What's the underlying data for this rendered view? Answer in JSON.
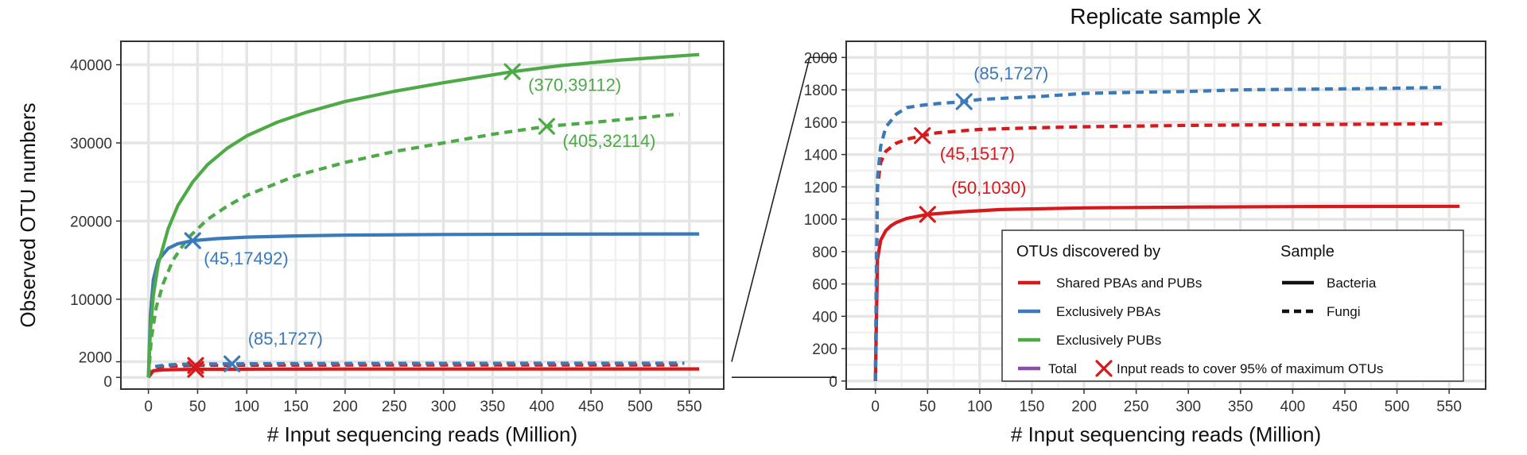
{
  "colors": {
    "shared": "#d7191c",
    "pbas": "#3a7ab8",
    "pubs": "#4daa47",
    "total": "#8e4ba8",
    "grid_major": "#e5e5e5",
    "grid_minor": "#f0f0f0",
    "panel_border": "#333333",
    "zoom_line": "#222222"
  },
  "chart_data": [
    {
      "type": "line",
      "title": "",
      "xlabel": "# Input sequencing reads (Million)",
      "ylabel": "Observed OTU numbers",
      "xlim": [
        -28,
        585
      ],
      "ylim": [
        -1500,
        43000
      ],
      "x_ticks": [
        0,
        50,
        100,
        150,
        200,
        250,
        300,
        350,
        400,
        450,
        500,
        550
      ],
      "y_ticks": [
        0,
        2000,
        10000,
        20000,
        30000,
        40000
      ],
      "grid": true,
      "series": [
        {
          "key": "shared_fungi",
          "color_key": "shared",
          "dash": true,
          "x": [
            0,
            5,
            15,
            30,
            45,
            60,
            100,
            150,
            200,
            300,
            400,
            540
          ],
          "y": [
            0,
            1200,
            1400,
            1480,
            1517,
            1540,
            1560,
            1570,
            1575,
            1580,
            1585,
            1590
          ]
        },
        {
          "key": "pbas_fungi",
          "color_key": "pbas",
          "dash": true,
          "x": [
            0,
            5,
            15,
            30,
            50,
            85,
            120,
            200,
            300,
            400,
            545
          ],
          "y": [
            0,
            1350,
            1550,
            1660,
            1700,
            1727,
            1750,
            1780,
            1795,
            1805,
            1815
          ]
        },
        {
          "key": "shared_bacteria",
          "color_key": "shared",
          "dash": false,
          "x": [
            0,
            5,
            15,
            30,
            50,
            80,
            120,
            200,
            300,
            400,
            560
          ],
          "y": [
            0,
            850,
            960,
            1000,
            1030,
            1045,
            1060,
            1070,
            1075,
            1078,
            1080
          ]
        },
        {
          "key": "pubs_fungi",
          "color_key": "pubs",
          "dash": true,
          "x": [
            0,
            3,
            8,
            15,
            25,
            40,
            60,
            80,
            100,
            150,
            200,
            250,
            300,
            350,
            405,
            450,
            500,
            540
          ],
          "y": [
            0,
            5000,
            9000,
            12000,
            15000,
            17800,
            20200,
            21900,
            23300,
            25800,
            27500,
            28900,
            30000,
            31100,
            32114,
            32600,
            33200,
            33700
          ]
        },
        {
          "key": "pbas_bacteria",
          "color_key": "pbas",
          "dash": false,
          "x": [
            0,
            2,
            5,
            10,
            20,
            30,
            45,
            70,
            100,
            150,
            200,
            300,
            400,
            560
          ],
          "y": [
            0,
            8000,
            12500,
            15000,
            16500,
            17100,
            17492,
            17750,
            17950,
            18100,
            18200,
            18280,
            18320,
            18350
          ]
        },
        {
          "key": "pubs_bacteria",
          "color_key": "pubs",
          "dash": false,
          "x": [
            0,
            2,
            5,
            10,
            20,
            30,
            45,
            60,
            80,
            100,
            130,
            160,
            200,
            250,
            300,
            370,
            420,
            480,
            560
          ],
          "y": [
            0,
            6000,
            10500,
            14500,
            19000,
            22000,
            25000,
            27200,
            29300,
            30900,
            32600,
            33900,
            35300,
            36600,
            37700,
            39112,
            39900,
            40600,
            41300
          ]
        }
      ],
      "markers": [
        {
          "x": 370,
          "y": 39112,
          "label": "(370,39112)",
          "color_key": "pubs",
          "dx": 20,
          "dy": 24,
          "anchor": "start"
        },
        {
          "x": 405,
          "y": 32114,
          "label": "(405,32114)",
          "color_key": "pubs",
          "dx": 20,
          "dy": 26,
          "anchor": "start"
        },
        {
          "x": 45,
          "y": 17492,
          "label": "(45,17492)",
          "color_key": "pbas",
          "dx": 14,
          "dy": 30,
          "anchor": "start"
        },
        {
          "x": 85,
          "y": 1727,
          "label": "(85,1727)",
          "color_key": "pbas",
          "dx": 20,
          "dy": -24,
          "anchor": "start"
        },
        {
          "x": 48,
          "y": 1517,
          "label": "",
          "color_key": "shared",
          "dx": 0,
          "dy": 0,
          "anchor": "start"
        },
        {
          "x": 48,
          "y": 1030,
          "label": "",
          "color_key": "shared",
          "dx": 0,
          "dy": 0,
          "anchor": "start"
        }
      ]
    },
    {
      "type": "line",
      "title": "Replicate sample X",
      "xlabel": "# Input sequencing reads (Million)",
      "ylabel": "",
      "xlim": [
        -28,
        585
      ],
      "ylim": [
        -50,
        2100
      ],
      "x_ticks": [
        0,
        50,
        100,
        150,
        200,
        250,
        300,
        350,
        400,
        450,
        500,
        550
      ],
      "y_ticks": [
        0,
        200,
        400,
        600,
        800,
        1000,
        1200,
        1400,
        1600,
        1800,
        2000
      ],
      "grid": true,
      "series": [
        {
          "key": "shared_bacteria",
          "color_key": "shared",
          "dash": false,
          "x": [
            0,
            2,
            5,
            10,
            15,
            20,
            30,
            50,
            80,
            120,
            200,
            300,
            400,
            560
          ],
          "y": [
            0,
            750,
            870,
            930,
            960,
            980,
            1005,
            1030,
            1045,
            1060,
            1070,
            1075,
            1078,
            1080
          ]
        },
        {
          "key": "shared_fungi",
          "color_key": "shared",
          "dash": true,
          "x": [
            0,
            2,
            5,
            10,
            20,
            30,
            45,
            60,
            100,
            150,
            200,
            300,
            400,
            545
          ],
          "y": [
            0,
            1200,
            1350,
            1420,
            1470,
            1495,
            1517,
            1535,
            1555,
            1565,
            1572,
            1580,
            1585,
            1590
          ]
        },
        {
          "key": "pbas_fungi",
          "color_key": "pbas",
          "dash": true,
          "x": [
            0,
            2,
            5,
            10,
            20,
            30,
            45,
            60,
            85,
            100,
            130,
            160,
            200,
            250,
            300,
            350,
            400,
            450,
            500,
            545
          ],
          "y": [
            0,
            1250,
            1450,
            1570,
            1650,
            1690,
            1705,
            1715,
            1727,
            1740,
            1750,
            1760,
            1778,
            1785,
            1790,
            1800,
            1803,
            1806,
            1810,
            1815
          ]
        }
      ],
      "markers": [
        {
          "x": 85,
          "y": 1727,
          "label": "(85,1727)",
          "color_key": "pbas",
          "dx": 12,
          "dy": -28,
          "anchor": "start"
        },
        {
          "x": 45,
          "y": 1517,
          "label": "(45,1517)",
          "color_key": "shared",
          "dx": 22,
          "dy": 30,
          "anchor": "start"
        },
        {
          "x": 50,
          "y": 1030,
          "label": "(50,1030)",
          "color_key": "shared",
          "dx": 30,
          "dy": -26,
          "anchor": "start"
        }
      ],
      "legend": {
        "placement": "bottom-right",
        "title_left": "OTUs discovered by",
        "title_right": "Sample",
        "left_items": [
          {
            "label": "Shared PBAs and PUBs",
            "color_key": "shared"
          },
          {
            "label": "Exclusively PBAs",
            "color_key": "pbas"
          },
          {
            "label": "Exclusively PUBs",
            "color_key": "pubs"
          },
          {
            "label": "Total",
            "color_key": "total"
          }
        ],
        "right_items": [
          {
            "label": "Bacteria",
            "dash": false
          },
          {
            "label": "Fungi",
            "dash": true
          }
        ],
        "marker_label": "Input reads to cover 95% of maximum OTUs"
      }
    }
  ]
}
